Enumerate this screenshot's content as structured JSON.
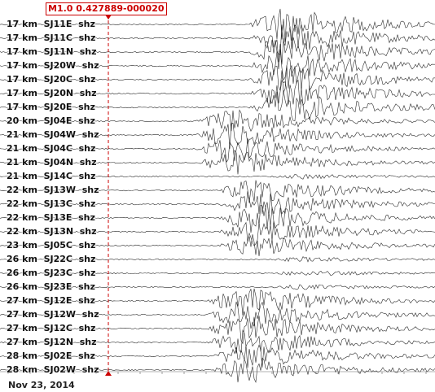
{
  "event": {
    "label": "M1.0 0.427889-000020",
    "marker_color": "#cc0000"
  },
  "date": "Nov 23, 2014",
  "trace_color": "#2a2a2a",
  "stations": [
    {
      "label": "17 km  SJ11E  shz",
      "onset": 305,
      "amp": 2.6
    },
    {
      "label": "17 km  SJ11C  shz",
      "onset": 305,
      "amp": 2.4
    },
    {
      "label": "17 km  SJ11N  shz",
      "onset": 305,
      "amp": 2.4
    },
    {
      "label": "17 km  SJ20W  shz",
      "onset": 305,
      "amp": 2.3
    },
    {
      "label": "17 km  SJ20C  shz",
      "onset": 305,
      "amp": 2.2
    },
    {
      "label": "17 km  SJ20N  shz",
      "onset": 305,
      "amp": 2.2
    },
    {
      "label": "17 km  SJ20E  shz",
      "onset": 305,
      "amp": 2.4
    },
    {
      "label": "20 km  SJ04E  shz",
      "onset": 240,
      "amp": 1.8
    },
    {
      "label": "21 km  SJ04W  shz",
      "onset": 240,
      "amp": 1.9
    },
    {
      "label": "21 km  SJ04C  shz",
      "onset": 240,
      "amp": 1.9
    },
    {
      "label": "21 km  SJ04N  shz",
      "onset": 240,
      "amp": 1.8
    },
    {
      "label": "21 km  SJ14C  shz",
      "onset": 330,
      "amp": 0.3
    },
    {
      "label": "22 km  SJ13W  shz",
      "onset": 268,
      "amp": 1.9
    },
    {
      "label": "22 km  SJ13C  shz",
      "onset": 268,
      "amp": 2.0
    },
    {
      "label": "22 km  SJ13E  shz",
      "onset": 268,
      "amp": 2.0
    },
    {
      "label": "22 km  SJ13N  shz",
      "onset": 268,
      "amp": 1.9
    },
    {
      "label": "23 km  SJ05C  shz",
      "onset": 268,
      "amp": 1.6
    },
    {
      "label": "26 km  SJ22C  shz",
      "onset": 330,
      "amp": 0.3
    },
    {
      "label": "26 km  SJ23C  shz",
      "onset": 330,
      "amp": 0.3
    },
    {
      "label": "26 km  SJ23E  shz",
      "onset": 330,
      "amp": 0.3
    },
    {
      "label": "27 km  SJ12E  shz",
      "onset": 255,
      "amp": 2.1
    },
    {
      "label": "27 km  SJ12W  shz",
      "onset": 255,
      "amp": 2.2
    },
    {
      "label": "27 km  SJ12C  shz",
      "onset": 255,
      "amp": 2.2
    },
    {
      "label": "27 km  SJ12N  shz",
      "onset": 255,
      "amp": 2.0
    },
    {
      "label": "28 km  SJ02E  shz",
      "onset": 260,
      "amp": 1.9
    },
    {
      "label": "28 km  SJ02W  shz",
      "onset": 260,
      "amp": 2.0
    }
  ]
}
